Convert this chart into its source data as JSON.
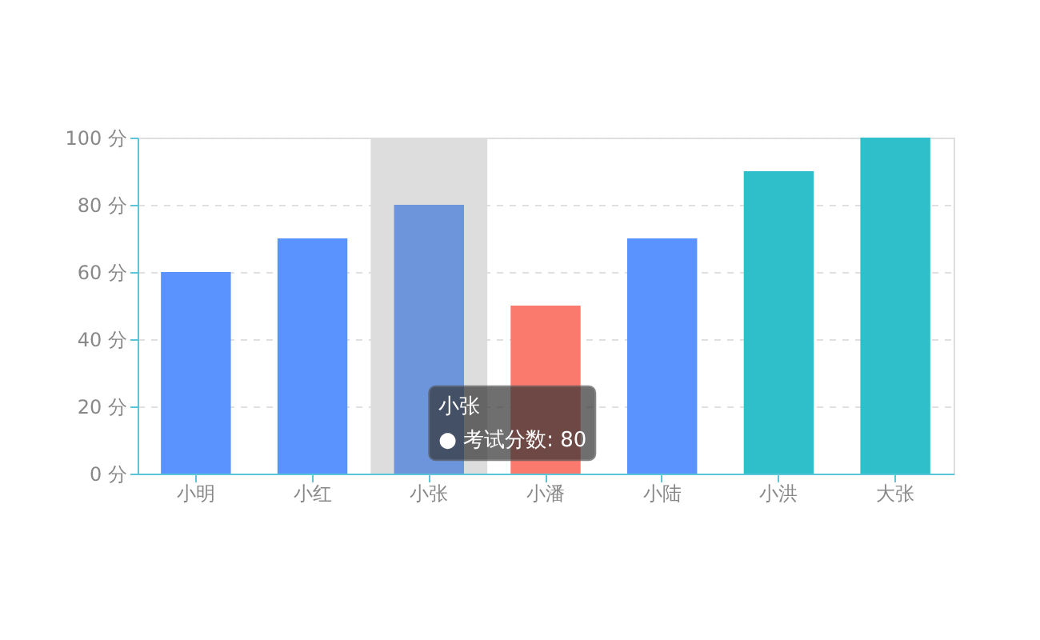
{
  "chart_data": {
    "type": "bar",
    "categories": [
      "小明",
      "小红",
      "小张",
      "小潘",
      "小陆",
      "小洪",
      "大张"
    ],
    "values": [
      60,
      70,
      80,
      50,
      70,
      90,
      100
    ],
    "colors": [
      "#5b93fe",
      "#5b93fe",
      "#6c95dc",
      "#fa7a6e",
      "#5b93fe",
      "#2fbfca",
      "#2fbfca"
    ],
    "ylim": [
      0,
      100
    ],
    "yticks": [
      {
        "value": 0,
        "label": "0 分"
      },
      {
        "value": 20,
        "label": "20 分"
      },
      {
        "value": 40,
        "label": "40 分"
      },
      {
        "value": 60,
        "label": "60 分"
      },
      {
        "value": 80,
        "label": "80 分"
      },
      {
        "value": 100,
        "label": "100 分"
      }
    ],
    "grid": "y",
    "bands": [
      {
        "axis": "x",
        "from": "小张",
        "to": "小张",
        "color": "#dddddd"
      }
    ],
    "annotations": [
      "小张",
      "● 考试分数: 80"
    ]
  }
}
